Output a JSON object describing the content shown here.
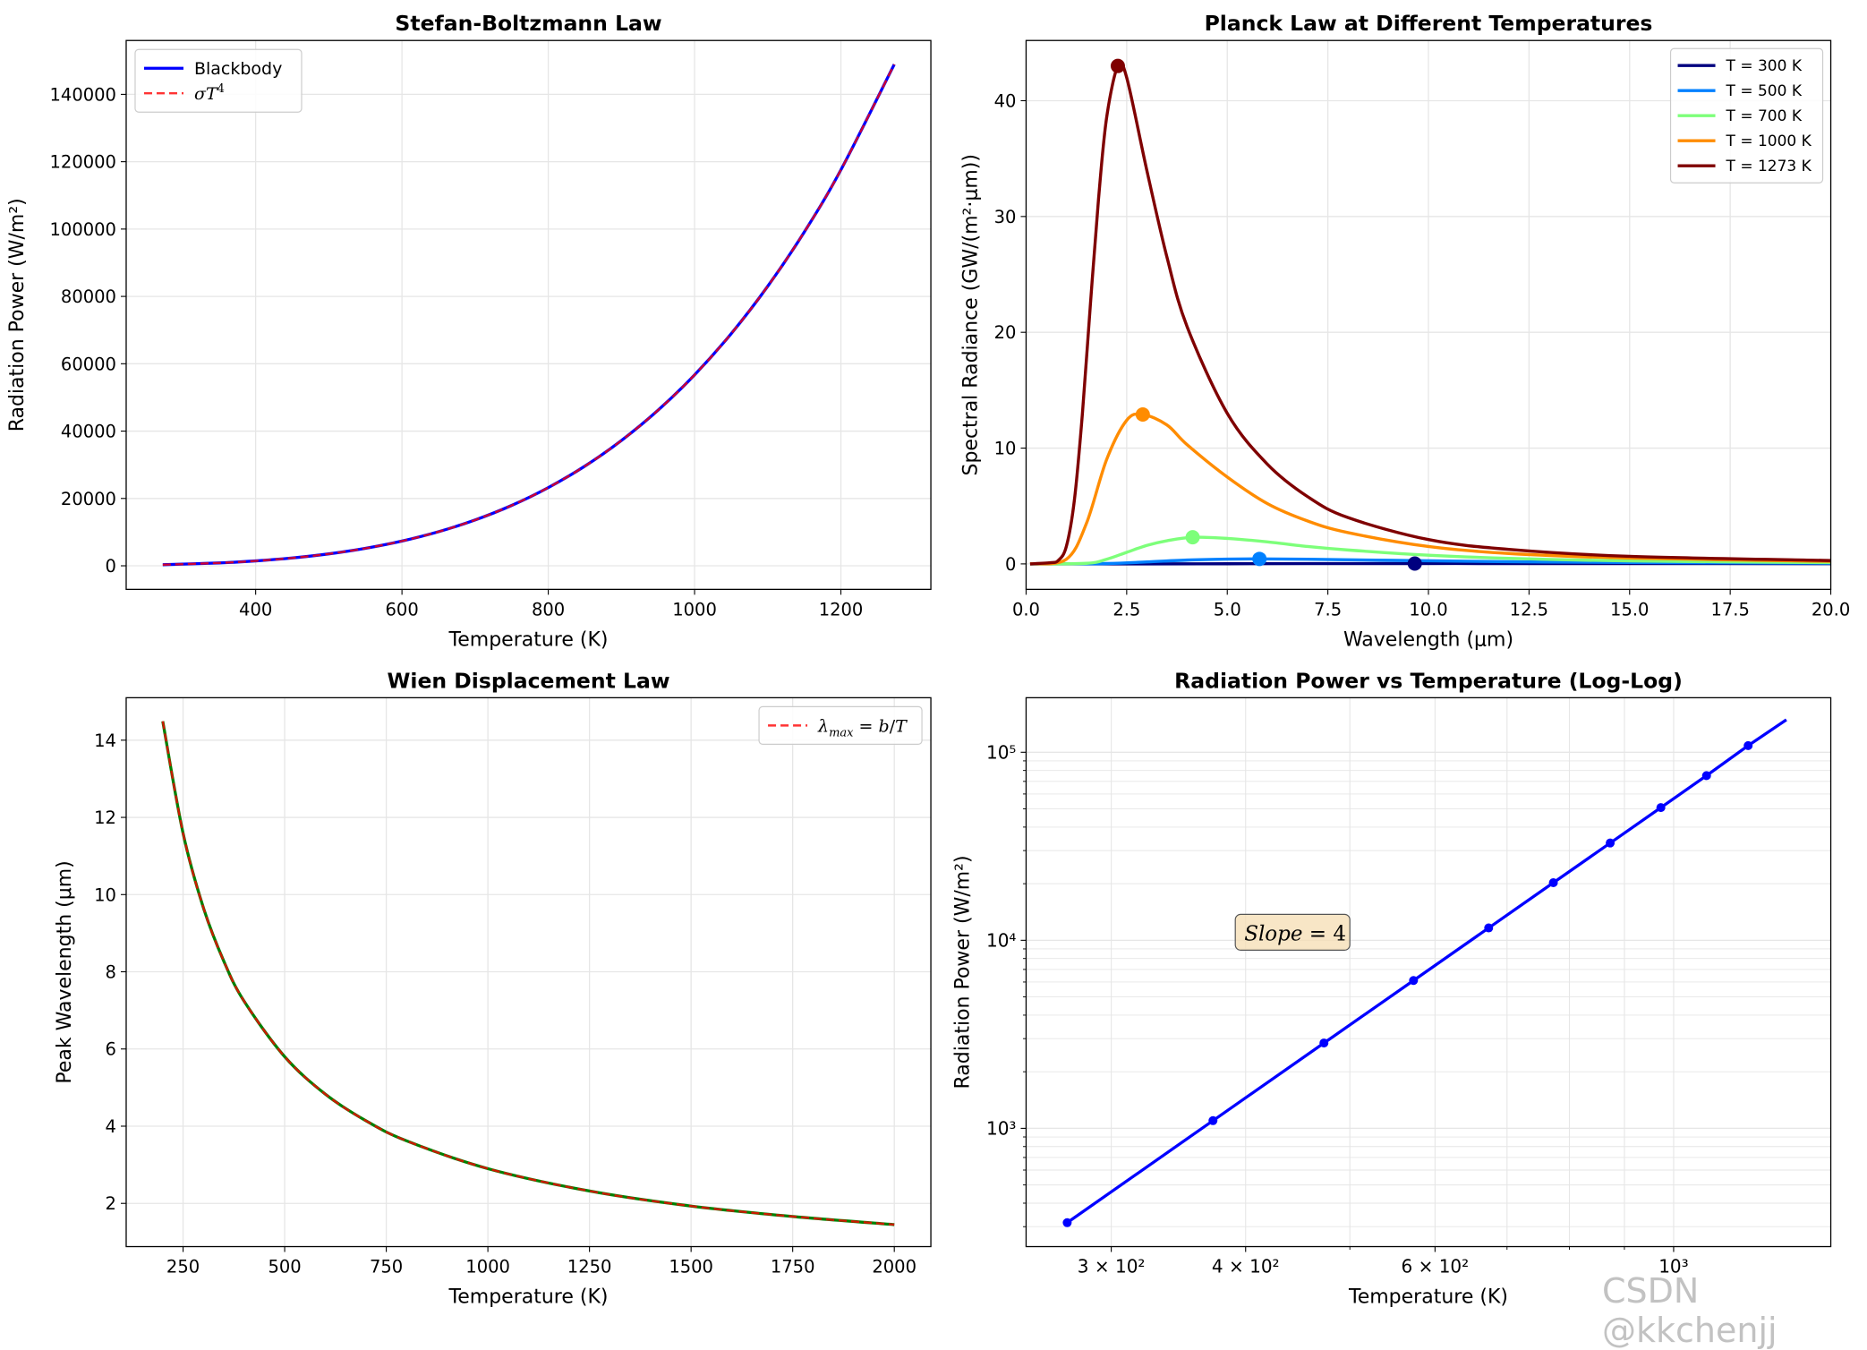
{
  "watermark": "CSDN @kkchenjj",
  "chart_data": [
    {
      "type": "line",
      "title": "Stefan-Boltzmann Law",
      "xlabel": "Temperature (K)",
      "ylabel": "Radiation Power (W/m²)",
      "xlim": [
        223,
        1323
      ],
      "ylim": [
        -7000,
        156000
      ],
      "xticks": [
        400,
        600,
        800,
        1000,
        1200
      ],
      "yticks": [
        0,
        20000,
        40000,
        60000,
        80000,
        100000,
        120000,
        140000
      ],
      "grid": true,
      "legend": "top-left",
      "series": [
        {
          "name": "Blackbody",
          "color": "#0000ff",
          "style": "solid",
          "x": [
            273,
            350,
            400,
            450,
            500,
            550,
            600,
            650,
            700,
            750,
            800,
            850,
            900,
            950,
            1000,
            1050,
            1100,
            1150,
            1200,
            1273
          ],
          "y": [
            315,
            851,
            1452,
            2325,
            3544,
            5189,
            7348,
            10121,
            13612,
            17935,
            23224,
            29593,
            37205,
            46185,
            56700,
            68919,
            83010,
            99132,
            117573,
            148900
          ]
        },
        {
          "name": "σT⁴",
          "color": "#ff0000",
          "style": "dashed",
          "x": [
            273,
            350,
            400,
            450,
            500,
            550,
            600,
            650,
            700,
            750,
            800,
            850,
            900,
            950,
            1000,
            1050,
            1100,
            1150,
            1200,
            1273
          ],
          "y": [
            315,
            851,
            1452,
            2325,
            3544,
            5189,
            7348,
            10121,
            13612,
            17935,
            23224,
            29593,
            37205,
            46185,
            56700,
            68919,
            83010,
            99132,
            117573,
            148900
          ]
        }
      ]
    },
    {
      "type": "line",
      "title": "Planck Law at Different Temperatures",
      "xlabel": "Wavelength (μm)",
      "ylabel": "Spectral Radiance (GW/(m²·μm))",
      "xlim": [
        0,
        20
      ],
      "ylim": [
        -2.2,
        45.2
      ],
      "xticks": [
        0.0,
        2.5,
        5.0,
        7.5,
        10.0,
        12.5,
        15.0,
        17.5,
        20.0
      ],
      "xtick_labels": [
        "0.0",
        "2.5",
        "5.0",
        "7.5",
        "10.0",
        "12.5",
        "15.0",
        "17.5",
        "20.0"
      ],
      "yticks": [
        0,
        10,
        20,
        30,
        40
      ],
      "grid": true,
      "legend": "top-right",
      "series": [
        {
          "name": "T = 300 K",
          "color": "#00007f",
          "x": [
            0.1,
            3,
            5,
            7,
            9.66,
            12,
            15,
            20
          ],
          "y": [
            0,
            0.002,
            0.012,
            0.024,
            0.031,
            0.03,
            0.026,
            0.018
          ],
          "peak": [
            9.66,
            0.031
          ]
        },
        {
          "name": "T = 500 K",
          "color": "#0080ff",
          "x": [
            0.1,
            2,
            3,
            4,
            5,
            5.8,
            7,
            9,
            12,
            15,
            20
          ],
          "y": [
            0,
            0.03,
            0.17,
            0.33,
            0.41,
            0.43,
            0.4,
            0.31,
            0.19,
            0.12,
            0.06
          ],
          "peak": [
            5.8,
            0.43
          ]
        },
        {
          "name": "T = 700 K",
          "color": "#7dff7a",
          "x": [
            0.1,
            1.5,
            2,
            2.5,
            3,
            3.5,
            4.14,
            5,
            6,
            7,
            8,
            10,
            12,
            15,
            20
          ],
          "y": [
            0,
            0.05,
            0.4,
            1.0,
            1.6,
            2.0,
            2.3,
            2.2,
            1.9,
            1.5,
            1.2,
            0.75,
            0.48,
            0.26,
            0.11
          ],
          "peak": [
            4.14,
            2.3
          ]
        },
        {
          "name": "T = 1000 K",
          "color": "#ff8c00",
          "x": [
            0.1,
            1,
            1.5,
            2,
            2.5,
            2.9,
            3.5,
            4,
            5,
            6,
            7,
            8,
            10,
            12,
            15,
            20
          ],
          "y": [
            0,
            0.4,
            3.5,
            9.0,
            12.4,
            12.9,
            12.0,
            10.3,
            7.5,
            5.2,
            3.7,
            2.7,
            1.5,
            0.9,
            0.5,
            0.22
          ],
          "peak": [
            2.9,
            12.9
          ]
        },
        {
          "name": "T = 1273 K",
          "color": "#7f0000",
          "x": [
            0.1,
            0.6,
            0.8,
            1.0,
            1.2,
            1.4,
            1.6,
            1.8,
            2.0,
            2.28,
            2.5,
            3.0,
            3.5,
            4.0,
            5.0,
            6.0,
            7.0,
            8.0,
            10.0,
            12.0,
            15.0,
            20.0
          ],
          "y": [
            0,
            0.1,
            0.3,
            1.5,
            5.5,
            13.0,
            22.5,
            31.5,
            38.5,
            43.0,
            42.0,
            34.0,
            26.5,
            20.5,
            13.0,
            8.6,
            5.8,
            4.0,
            2.1,
            1.25,
            0.65,
            0.29
          ],
          "peak": [
            2.28,
            43.0
          ]
        }
      ]
    },
    {
      "type": "line",
      "title": "Wien Displacement Law",
      "xlabel": "Temperature (K)",
      "ylabel": "Peak Wavelength (μm)",
      "xlim": [
        110,
        2090
      ],
      "ylim": [
        0.88,
        15.1
      ],
      "xticks": [
        250,
        500,
        750,
        1000,
        1250,
        1500,
        1750,
        2000
      ],
      "yticks": [
        2,
        4,
        6,
        8,
        10,
        12,
        14
      ],
      "grid": true,
      "legend": "top-right",
      "series": [
        {
          "name": "",
          "color": "#008000",
          "style": "solid",
          "x": [
            200,
            250,
            300,
            350,
            400,
            500,
            600,
            700,
            800,
            1000,
            1250,
            1500,
            1750,
            2000
          ],
          "y": [
            14.49,
            11.59,
            9.66,
            8.28,
            7.24,
            5.8,
            4.83,
            4.14,
            3.62,
            2.9,
            2.32,
            1.93,
            1.66,
            1.45
          ]
        },
        {
          "name": "λmax = b/T",
          "color": "#ff0000",
          "style": "dashed",
          "x": [
            200,
            250,
            300,
            350,
            400,
            500,
            600,
            700,
            800,
            1000,
            1250,
            1500,
            1750,
            2000
          ],
          "y": [
            14.49,
            11.59,
            9.66,
            8.28,
            7.24,
            5.8,
            4.83,
            4.14,
            3.62,
            2.9,
            2.32,
            1.93,
            1.66,
            1.45
          ]
        }
      ]
    },
    {
      "type": "line",
      "title": "Radiation Power vs Temperature (Log-Log)",
      "xlabel": "Temperature (K)",
      "ylabel": "Radiation Power (W/m²)",
      "xscale": "log",
      "yscale": "log",
      "xlim": [
        250,
        1400
      ],
      "ylim": [
        235,
        195000
      ],
      "xticks": [
        300,
        400,
        600,
        1000
      ],
      "xtick_labels": [
        "3 × 10²",
        "4 × 10²",
        "6 × 10²",
        "10³"
      ],
      "yticks": [
        1000,
        10000,
        100000
      ],
      "ytick_labels": [
        "10³",
        "10⁴",
        "10⁵"
      ],
      "grid": true,
      "annotation": "Slope = 4",
      "series": [
        {
          "name": "",
          "color": "#0000ff",
          "x": [
            273,
            373,
            473,
            573,
            673,
            773,
            873,
            973,
            1073,
            1173,
            1273
          ],
          "y": [
            315,
            1099,
            2843,
            6112,
            11633,
            20245,
            32912,
            50772,
            75132,
            108489,
            148900
          ],
          "markers": [
            0,
            1,
            2,
            3,
            4,
            5,
            6,
            7,
            8,
            9
          ],
          "line_end": 10
        }
      ]
    }
  ]
}
